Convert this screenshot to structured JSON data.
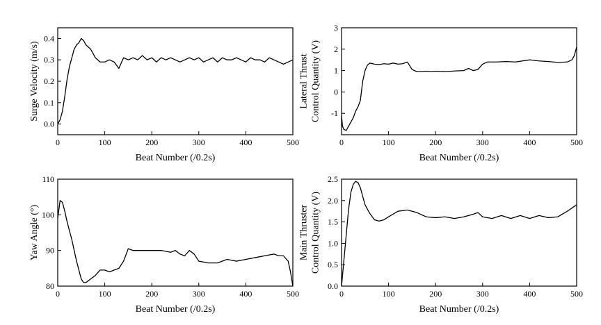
{
  "chart_data": [
    {
      "type": "line",
      "xlabel": "Beat Number (/0.2s)",
      "ylabel": [
        "Surge Velocity (m/s)"
      ],
      "xlim": [
        0,
        500
      ],
      "ylim": [
        -0.05,
        0.45
      ],
      "xticks": [
        0,
        100,
        200,
        300,
        400,
        500
      ],
      "yticks": [
        0.0,
        0.1,
        0.2,
        0.3,
        0.4
      ],
      "ytick_labels": [
        "0.0",
        "0.1",
        "0.2",
        "0.3",
        "0.4"
      ],
      "series": [
        {
          "x": [
            0,
            5,
            10,
            15,
            20,
            25,
            30,
            35,
            40,
            45,
            50,
            55,
            60,
            70,
            80,
            90,
            100,
            110,
            120,
            130,
            140,
            150,
            160,
            170,
            180,
            190,
            200,
            210,
            220,
            230,
            240,
            250,
            260,
            270,
            280,
            290,
            300,
            310,
            320,
            330,
            340,
            350,
            360,
            370,
            380,
            390,
            400,
            410,
            420,
            430,
            440,
            450,
            460,
            470,
            480,
            490,
            500
          ],
          "values": [
            0.0,
            0.02,
            0.06,
            0.13,
            0.21,
            0.27,
            0.31,
            0.35,
            0.37,
            0.38,
            0.4,
            0.39,
            0.37,
            0.35,
            0.31,
            0.29,
            0.29,
            0.3,
            0.29,
            0.26,
            0.31,
            0.3,
            0.31,
            0.3,
            0.32,
            0.3,
            0.31,
            0.29,
            0.31,
            0.3,
            0.31,
            0.3,
            0.29,
            0.3,
            0.31,
            0.3,
            0.31,
            0.29,
            0.3,
            0.31,
            0.29,
            0.31,
            0.3,
            0.3,
            0.31,
            0.3,
            0.29,
            0.31,
            0.3,
            0.3,
            0.29,
            0.31,
            0.3,
            0.29,
            0.28,
            0.29,
            0.3
          ]
        }
      ]
    },
    {
      "type": "line",
      "xlabel": "Beat Number (/0.2s)",
      "ylabel": [
        "Lateral Thrust",
        "Control Quantity (V)"
      ],
      "xlim": [
        0,
        500
      ],
      "ylim": [
        -2,
        3
      ],
      "xticks": [
        0,
        100,
        200,
        300,
        400,
        500
      ],
      "yticks": [
        -1,
        0,
        1,
        2,
        3
      ],
      "ytick_labels": [
        "-1",
        "0",
        "1",
        "2",
        "3"
      ],
      "series": [
        {
          "x": [
            0,
            2,
            5,
            10,
            15,
            20,
            25,
            30,
            35,
            40,
            45,
            50,
            55,
            60,
            70,
            80,
            90,
            100,
            110,
            120,
            130,
            140,
            150,
            160,
            170,
            180,
            190,
            200,
            220,
            240,
            260,
            270,
            280,
            290,
            300,
            310,
            330,
            350,
            370,
            400,
            420,
            440,
            460,
            480,
            490,
            495,
            500
          ],
          "values": [
            -1.1,
            -1.6,
            -1.75,
            -1.8,
            -1.6,
            -1.4,
            -1.2,
            -0.9,
            -0.7,
            -0.4,
            0.5,
            1.0,
            1.25,
            1.35,
            1.3,
            1.28,
            1.32,
            1.3,
            1.35,
            1.3,
            1.32,
            1.4,
            1.05,
            0.95,
            0.95,
            0.97,
            0.95,
            0.97,
            0.95,
            0.98,
            1.0,
            1.1,
            1.0,
            1.05,
            1.3,
            1.4,
            1.4,
            1.42,
            1.4,
            1.5,
            1.45,
            1.42,
            1.38,
            1.4,
            1.5,
            1.7,
            2.1
          ]
        }
      ]
    },
    {
      "type": "line",
      "xlabel": "Beat Number (/0.2s)",
      "ylabel": [
        "Yaw Angle (°)"
      ],
      "xlim": [
        0,
        500
      ],
      "ylim": [
        80,
        110
      ],
      "xticks": [
        0,
        100,
        200,
        300,
        400,
        500
      ],
      "yticks": [
        80,
        90,
        100,
        110
      ],
      "ytick_labels": [
        "80",
        "90",
        "100",
        "110"
      ],
      "series": [
        {
          "x": [
            0,
            5,
            10,
            15,
            20,
            30,
            40,
            50,
            55,
            60,
            65,
            70,
            80,
            90,
            100,
            110,
            120,
            130,
            140,
            150,
            160,
            180,
            200,
            220,
            240,
            250,
            260,
            270,
            280,
            290,
            300,
            320,
            340,
            360,
            380,
            400,
            420,
            440,
            460,
            470,
            480,
            490,
            495,
            500
          ],
          "values": [
            99,
            104,
            103.5,
            101,
            98,
            93,
            87,
            82,
            81,
            81,
            81.5,
            82,
            83,
            84.5,
            84.5,
            84,
            84.5,
            85,
            87,
            90.5,
            90,
            90,
            90,
            90,
            89.5,
            90,
            89,
            88.5,
            90,
            89,
            87,
            86.5,
            86.5,
            87.5,
            87,
            87.5,
            88,
            88.5,
            89,
            88.5,
            88.5,
            87,
            84,
            80
          ]
        }
      ]
    },
    {
      "type": "line",
      "xlabel": "Beat Number (/0.2s)",
      "ylabel": [
        "Main Thruster",
        "Control Quantity (V)"
      ],
      "xlim": [
        0,
        500
      ],
      "ylim": [
        0,
        2.5
      ],
      "xticks": [
        0,
        100,
        200,
        300,
        400,
        500
      ],
      "yticks": [
        0.0,
        0.5,
        1.0,
        1.5,
        2.0,
        2.5
      ],
      "ytick_labels": [
        "0.0",
        "0.5",
        "1.0",
        "1.5",
        "2.0",
        "2.5"
      ],
      "series": [
        {
          "x": [
            0,
            5,
            10,
            15,
            20,
            25,
            30,
            35,
            40,
            45,
            50,
            60,
            70,
            80,
            90,
            100,
            120,
            140,
            160,
            180,
            200,
            220,
            240,
            260,
            280,
            290,
            300,
            320,
            340,
            360,
            380,
            400,
            420,
            440,
            460,
            480,
            500
          ],
          "values": [
            0.0,
            0.6,
            1.2,
            1.8,
            2.2,
            2.38,
            2.45,
            2.42,
            2.3,
            2.1,
            1.9,
            1.7,
            1.55,
            1.52,
            1.55,
            1.62,
            1.75,
            1.78,
            1.72,
            1.62,
            1.6,
            1.62,
            1.58,
            1.62,
            1.68,
            1.72,
            1.62,
            1.58,
            1.65,
            1.58,
            1.65,
            1.58,
            1.65,
            1.6,
            1.62,
            1.75,
            1.9
          ]
        }
      ]
    }
  ]
}
